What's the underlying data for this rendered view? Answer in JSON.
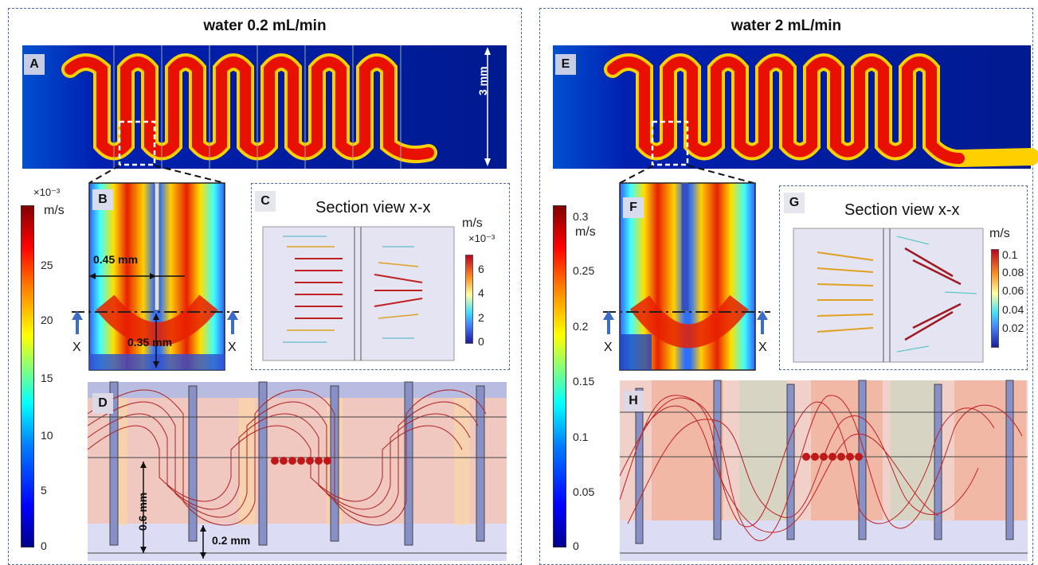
{
  "left": {
    "title": "water 0.2 mL/min",
    "labels": {
      "A": "A",
      "B": "B",
      "C": "C",
      "D": "D"
    },
    "dim_3mm": "3 mm",
    "dim_045": "0.45 mm",
    "dim_035": "0.35 mm",
    "dim_06": "0.6 mm",
    "dim_02": "0.2 mm",
    "section_marker": "X",
    "section_title": "Section view x-x",
    "colorbar": {
      "multiplier": "×10⁻³",
      "unit": "m/s",
      "ticks": [
        "25",
        "20",
        "15",
        "10",
        "5",
        "0"
      ]
    },
    "small_colorbar": {
      "unit": "m/s",
      "multiplier": "×10⁻³",
      "ticks": [
        "6",
        "4",
        "2",
        "0"
      ]
    }
  },
  "right": {
    "title": "water 2 mL/min",
    "labels": {
      "E": "E",
      "F": "F",
      "G": "G",
      "H": "H"
    },
    "section_marker": "X",
    "section_title": "Section view x-x",
    "colorbar": {
      "unit": "m/s",
      "ticks": [
        "0.3",
        "0.25",
        "0.2",
        "0.15",
        "0.1",
        "0.05",
        "0"
      ]
    },
    "small_colorbar": {
      "unit": "m/s",
      "ticks": [
        "0.1",
        "0.08",
        "0.06",
        "0.04",
        "0.02"
      ]
    }
  }
}
